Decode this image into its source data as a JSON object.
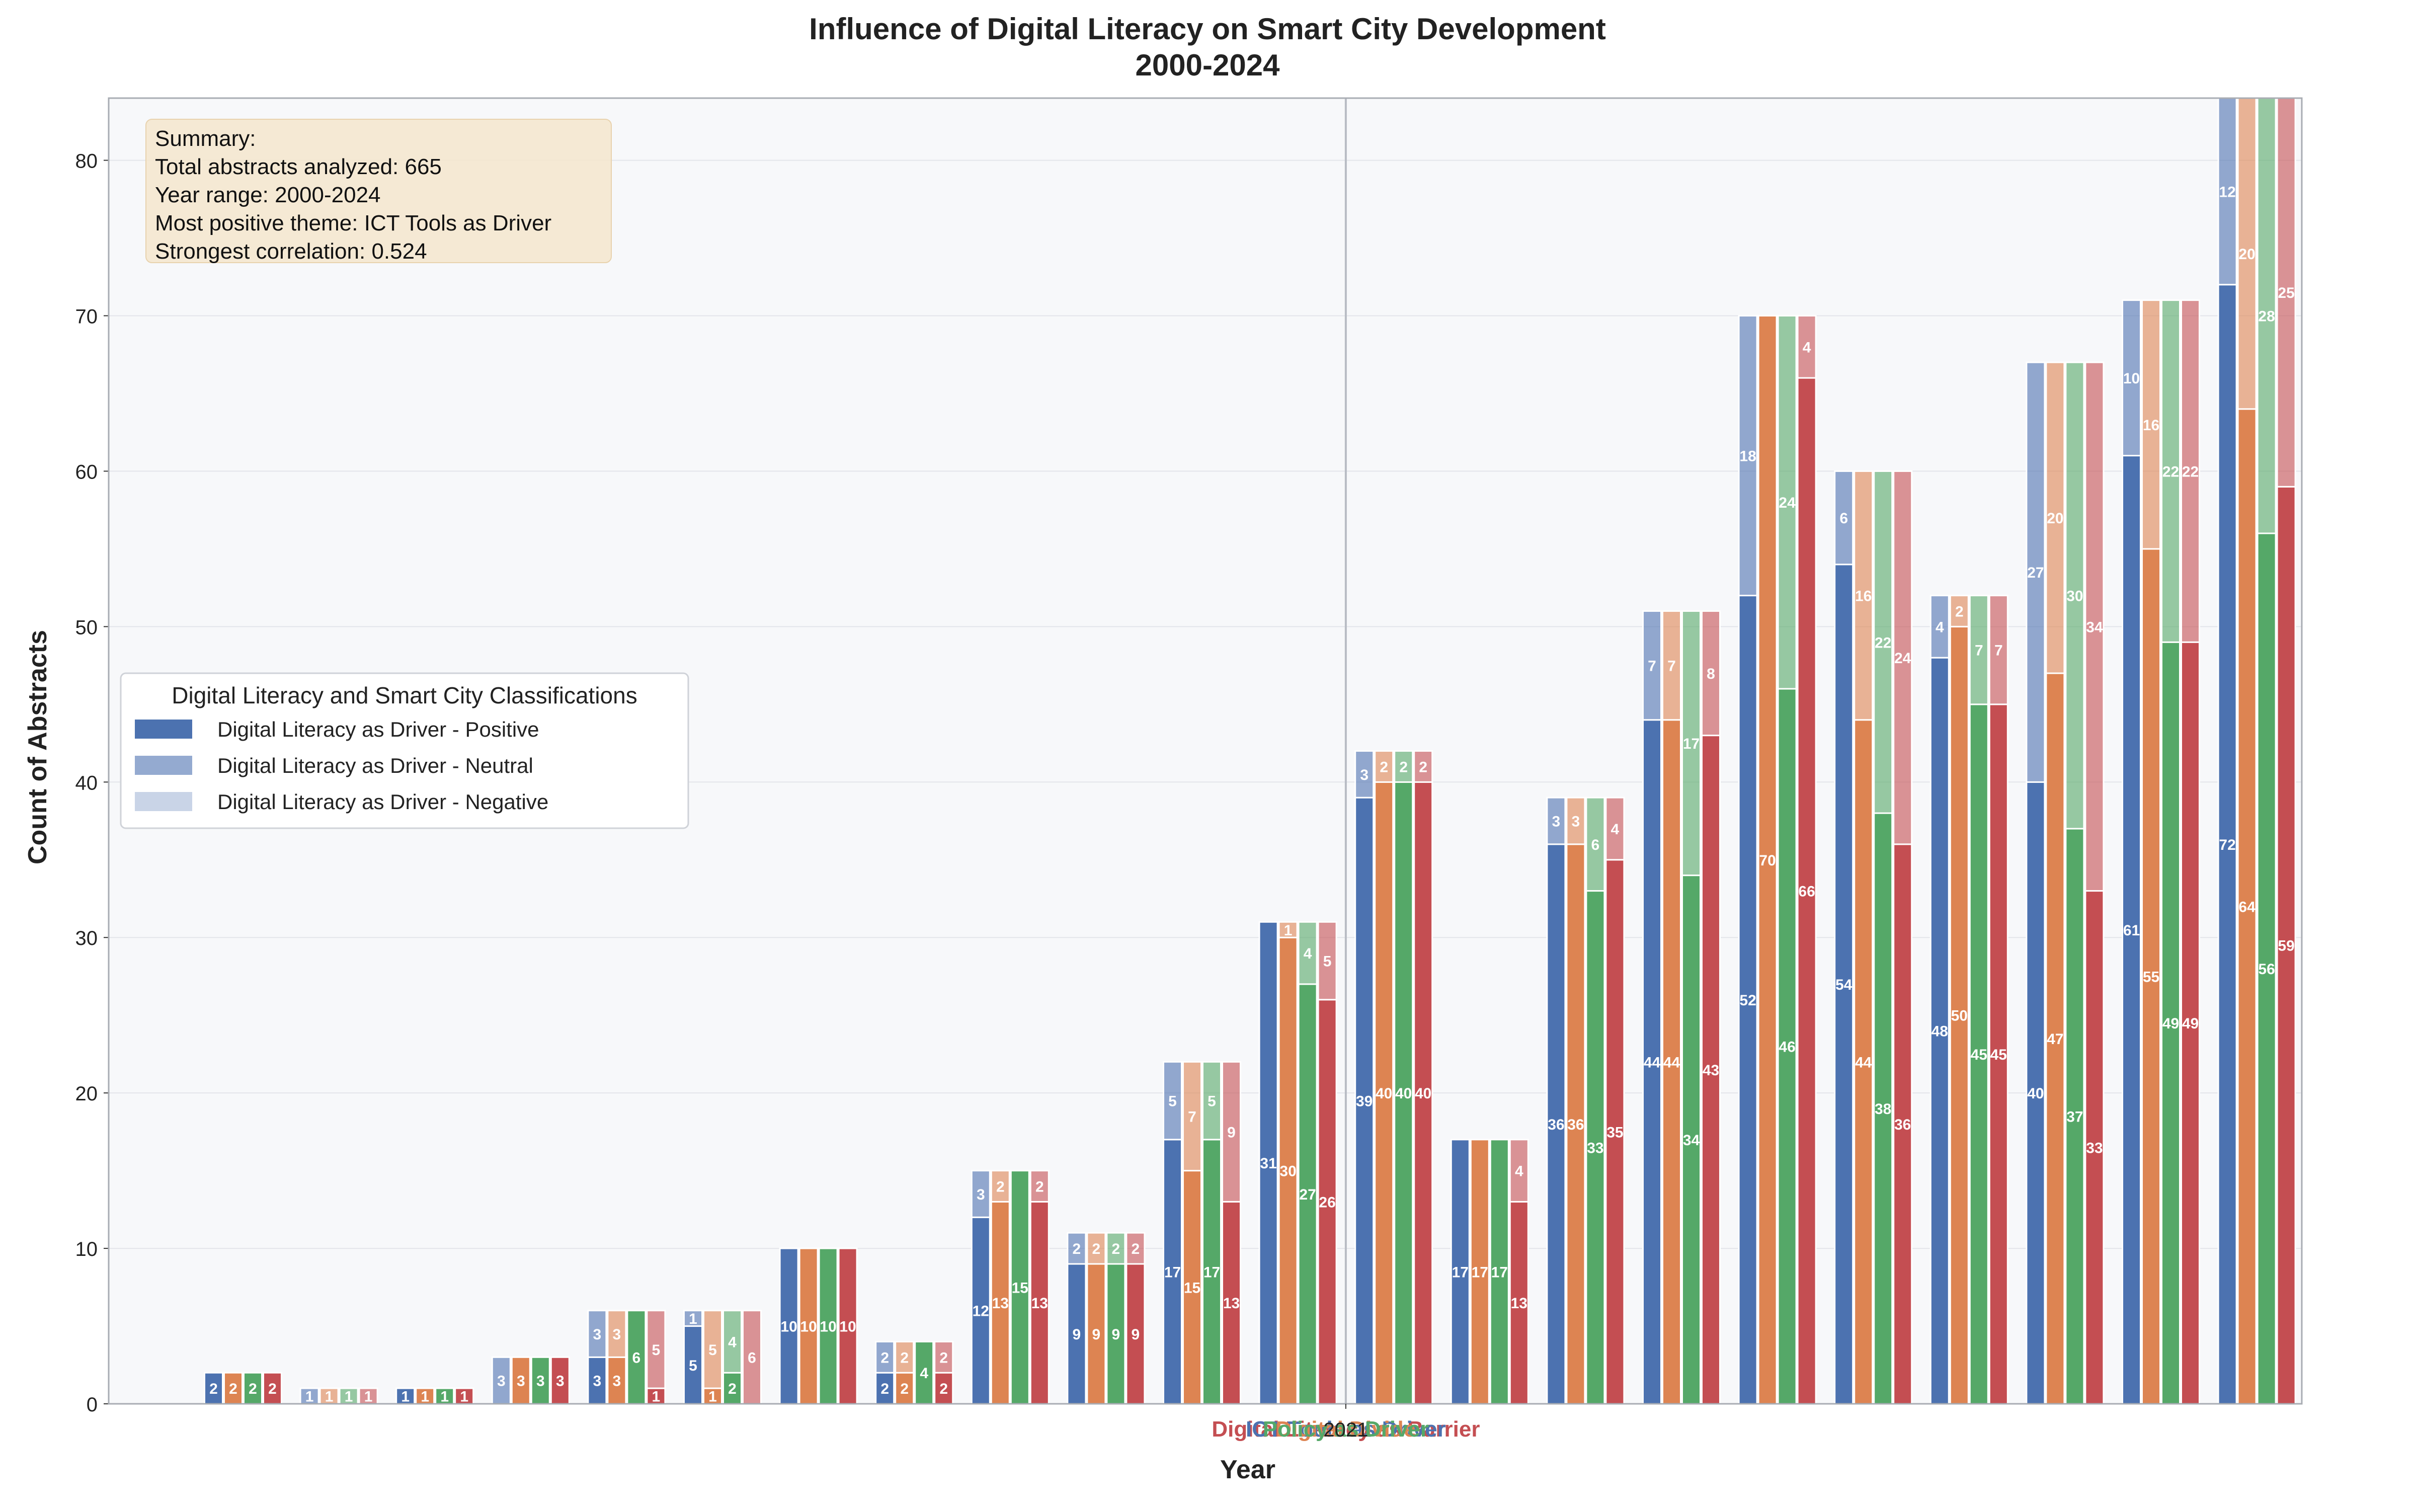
{
  "chart_data": {
    "type": "bar",
    "title": "Influence of Digital Literacy on Smart City Development",
    "subtitle": "2000-2024",
    "xlabel": "Year",
    "ylabel": "Count of Abstracts",
    "ylim": [
      0,
      84
    ],
    "yticks": [
      0,
      10,
      20,
      30,
      40,
      50,
      60,
      70,
      80
    ],
    "grid": true,
    "vertical_marker": {
      "label": "2021",
      "group_position": 11.5
    },
    "x_tick_labels_overlapping": [
      "Digital Literacy as Barrier",
      "ICT Tools as Driver",
      "Digital Divide",
      "Policy as Driver"
    ],
    "summary": {
      "heading": "Summary:",
      "lines": [
        "Total abstracts analyzed: 665",
        "Year range: 2000-2024",
        "Most positive theme: ICT Tools as Driver",
        "Strongest correlation: 0.524"
      ]
    },
    "legend": {
      "title": "Digital Literacy and Smart City Classifications",
      "position": "center-left",
      "entries": [
        {
          "label": "Digital Literacy as Driver - Positive",
          "color": "#4c72b0",
          "opacity": 1.0
        },
        {
          "label": "Digital Literacy as Driver - Neutral",
          "color": "#4c72b0",
          "opacity": 0.6
        },
        {
          "label": "Digital Literacy as Driver - Negative",
          "color": "#4c72b0",
          "opacity": 0.3
        }
      ]
    },
    "series_colors": [
      "#4c72b0",
      "#dd8452",
      "#55a868",
      "#c44e52"
    ],
    "group_count": 22,
    "stack_segments": [
      "Positive",
      "Neutral"
    ],
    "groups": [
      [
        [
          2,
          0
        ],
        [
          2,
          0
        ],
        [
          2,
          0
        ],
        [
          2,
          0
        ]
      ],
      [
        [
          0,
          1
        ],
        [
          0,
          1
        ],
        [
          0,
          1
        ],
        [
          0,
          1
        ]
      ],
      [
        [
          1,
          0
        ],
        [
          1,
          0
        ],
        [
          1,
          0
        ],
        [
          1,
          0
        ]
      ],
      [
        [
          0,
          3
        ],
        [
          3,
          0
        ],
        [
          3,
          0
        ],
        [
          3,
          0
        ]
      ],
      [
        [
          3,
          3
        ],
        [
          3,
          3
        ],
        [
          6,
          0
        ],
        [
          1,
          5
        ]
      ],
      [
        [
          5,
          1
        ],
        [
          1,
          5
        ],
        [
          2,
          4
        ],
        [
          0,
          6
        ]
      ],
      [
        [
          10,
          0
        ],
        [
          10,
          0
        ],
        [
          10,
          0
        ],
        [
          10,
          0
        ]
      ],
      [
        [
          2,
          2
        ],
        [
          2,
          2
        ],
        [
          4,
          0
        ],
        [
          2,
          2
        ]
      ],
      [
        [
          12,
          3
        ],
        [
          13,
          2
        ],
        [
          15,
          0
        ],
        [
          13,
          2
        ]
      ],
      [
        [
          9,
          2
        ],
        [
          9,
          2
        ],
        [
          9,
          2
        ],
        [
          9,
          2
        ]
      ],
      [
        [
          17,
          5
        ],
        [
          15,
          7
        ],
        [
          17,
          5
        ],
        [
          13,
          9
        ]
      ],
      [
        [
          31,
          0
        ],
        [
          30,
          1
        ],
        [
          27,
          4
        ],
        [
          26,
          5
        ]
      ],
      [
        [
          39,
          3
        ],
        [
          40,
          2
        ],
        [
          40,
          2
        ],
        [
          40,
          2
        ]
      ],
      [
        [
          17,
          0
        ],
        [
          17,
          0
        ],
        [
          17,
          0
        ],
        [
          13,
          4
        ]
      ],
      [
        [
          36,
          3
        ],
        [
          36,
          3
        ],
        [
          33,
          6
        ],
        [
          35,
          4
        ]
      ],
      [
        [
          44,
          7
        ],
        [
          44,
          7
        ],
        [
          34,
          17
        ],
        [
          43,
          8
        ]
      ],
      [
        [
          52,
          18
        ],
        [
          70,
          0
        ],
        [
          46,
          24
        ],
        [
          66,
          4
        ]
      ],
      [
        [
          54,
          6
        ],
        [
          44,
          16
        ],
        [
          38,
          22
        ],
        [
          36,
          24
        ]
      ],
      [
        [
          48,
          4
        ],
        [
          50,
          2
        ],
        [
          45,
          7
        ],
        [
          45,
          7
        ]
      ],
      [
        [
          40,
          27
        ],
        [
          47,
          20
        ],
        [
          37,
          30
        ],
        [
          33,
          34
        ]
      ],
      [
        [
          61,
          10
        ],
        [
          55,
          16
        ],
        [
          49,
          22
        ],
        [
          49,
          22
        ]
      ],
      [
        [
          72,
          12
        ],
        [
          64,
          20
        ],
        [
          56,
          28
        ],
        [
          59,
          25
        ]
      ]
    ]
  }
}
